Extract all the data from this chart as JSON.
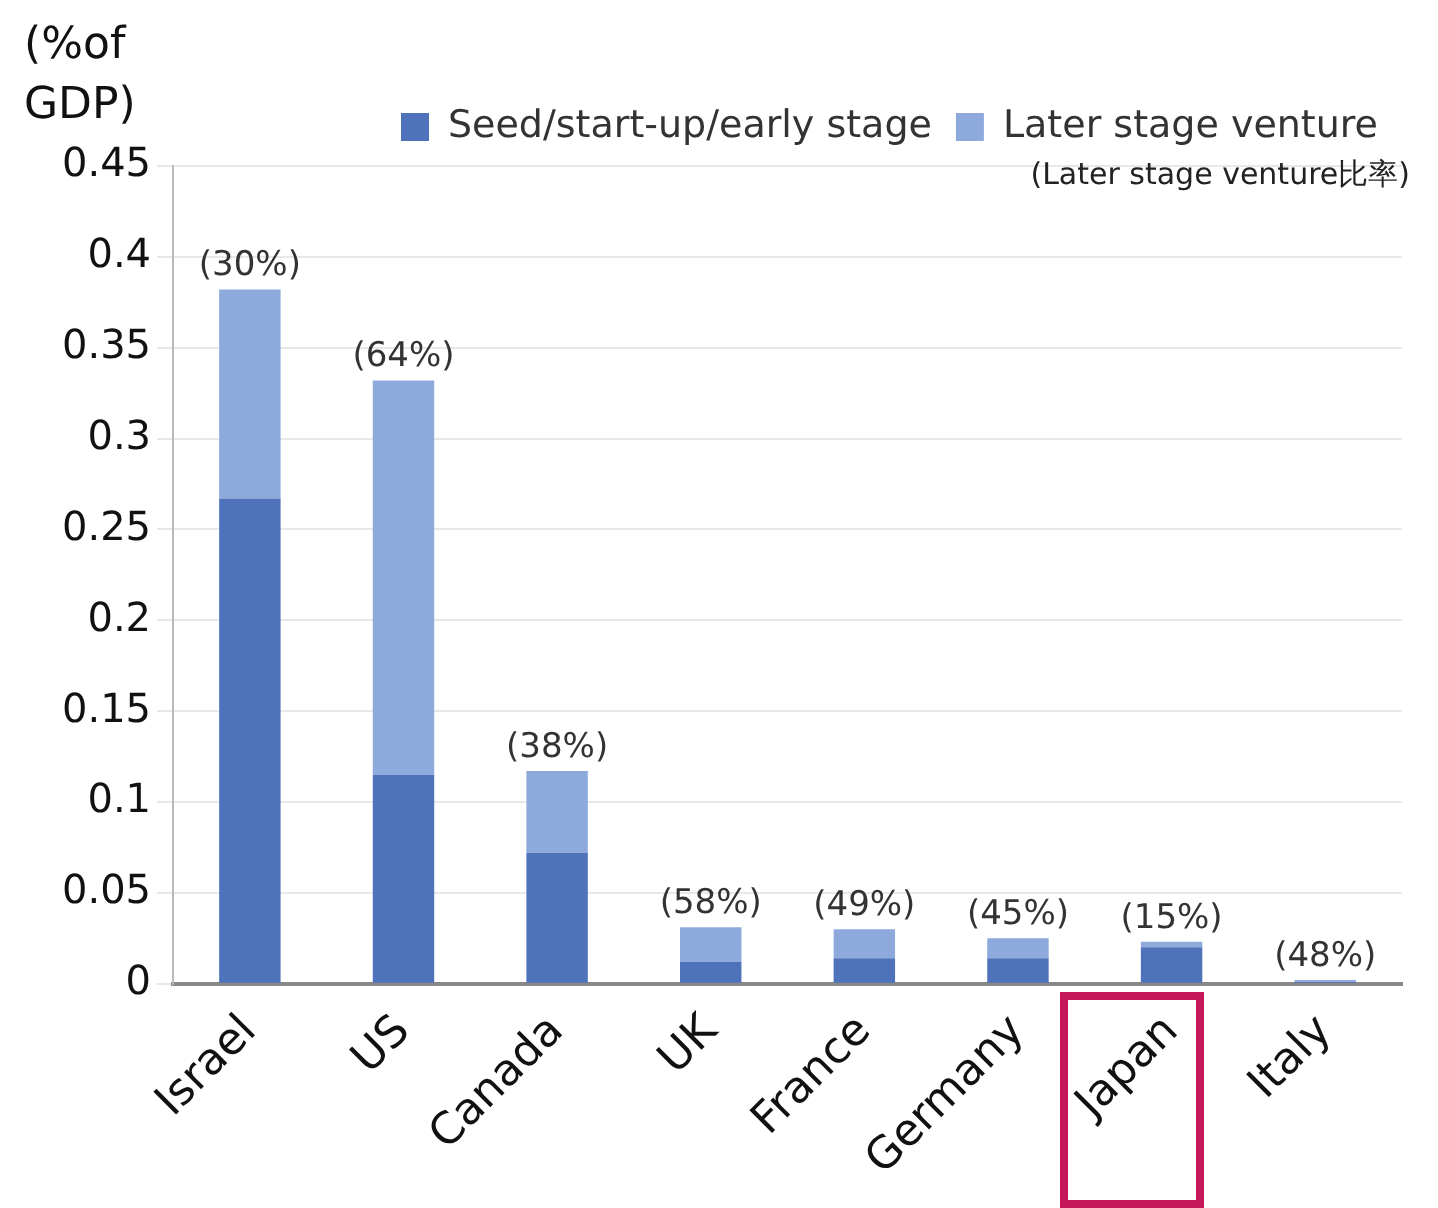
{
  "chart_data": {
    "type": "bar",
    "ylabel": "(%of GDP)",
    "categories": [
      "Israel",
      "US",
      "Canada",
      "UK",
      "France",
      "Germany",
      "Japan",
      "Italy"
    ],
    "series": [
      {
        "name": "Seed/start-up/early stage",
        "color": "#4f73bb",
        "values": [
          0.267,
          0.115,
          0.072,
          0.012,
          0.014,
          0.014,
          0.02,
          0.001
        ]
      },
      {
        "name": "Later stage venture",
        "color": "#8eaadc",
        "values": [
          0.115,
          0.217,
          0.045,
          0.019,
          0.016,
          0.011,
          0.003,
          0.001
        ]
      }
    ],
    "stacked": true,
    "ylim": [
      0,
      0.45
    ],
    "yticks": [
      0,
      0.05,
      0.1,
      0.15,
      0.2,
      0.25,
      0.3,
      0.35,
      0.4,
      0.45
    ],
    "grid": "y",
    "legend": "top",
    "annotations": [
      "(Later stage venture比率)",
      {
        "text": "(30%)",
        "x": "Israel",
        "y": 0.382
      },
      {
        "text": "(64%)",
        "x": "US",
        "y": 0.332
      },
      {
        "text": "(38%)",
        "x": "Canada",
        "y": 0.117
      },
      {
        "text": "(58%)",
        "x": "UK",
        "y": 0.031
      },
      {
        "text": "(49%)",
        "x": "France",
        "y": 0.03
      },
      {
        "text": "(45%)",
        "x": "Germany",
        "y": 0.025
      },
      {
        "text": "(15%)",
        "x": "Japan",
        "y": 0.023
      },
      {
        "text": "(48%)",
        "x": "Italy",
        "y": 0.002
      }
    ]
  }
}
